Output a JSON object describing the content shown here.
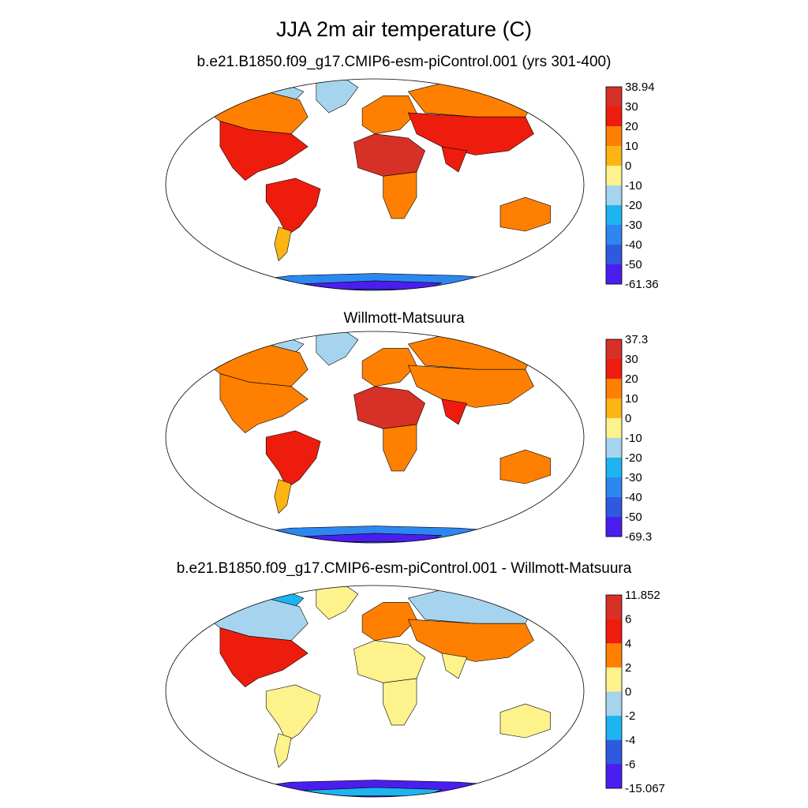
{
  "title": "JJA 2m air temperature (C)",
  "panels": [
    {
      "id": "model",
      "title": "b.e21.B1850.f09_g17.CMIP6-esm-piControl.001 (yrs 301-400)",
      "colorbar": {
        "labels": [
          "38.94",
          "30",
          "20",
          "10",
          "0",
          "-10",
          "-20",
          "-30",
          "-40",
          "-50",
          "-61.36"
        ],
        "colors": [
          "#d73027",
          "#ee1c0c",
          "#ff8000",
          "#fdb514",
          "#fef28c",
          "#a6d4ee",
          "#1eb4f0",
          "#2d87ef",
          "#2f5ae0",
          "#4b1ef0"
        ]
      },
      "regions": {
        "north_america": "#ee1c0c",
        "canada": "#ff8000",
        "arctic_islands": "#a6d4ee",
        "south_america": "#ee1c0c",
        "patagonia": "#fdb514",
        "africa_north": "#d73027",
        "africa_south": "#ff8000",
        "europe": "#ff8000",
        "asia": "#ee1c0c",
        "siberia": "#ff8000",
        "greenland": "#a6d4ee",
        "india": "#ee1c0c",
        "australia": "#ff8000",
        "antarctica": "#2d87ef",
        "antarctica_core": "#4b1ef0"
      }
    },
    {
      "id": "obs",
      "title": "Willmott-Matsuura",
      "colorbar": {
        "labels": [
          "37.3",
          "30",
          "20",
          "10",
          "0",
          "-10",
          "-20",
          "-30",
          "-40",
          "-50",
          "-69.3"
        ],
        "colors": [
          "#d73027",
          "#ee1c0c",
          "#ff8000",
          "#fdb514",
          "#fef28c",
          "#a6d4ee",
          "#1eb4f0",
          "#2d87ef",
          "#2f5ae0",
          "#4b1ef0"
        ]
      },
      "regions": {
        "north_america": "#ff8000",
        "canada": "#ff8000",
        "arctic_islands": "#a6d4ee",
        "south_america": "#ee1c0c",
        "patagonia": "#fdb514",
        "africa_north": "#d73027",
        "africa_south": "#ff8000",
        "europe": "#ff8000",
        "asia": "#ff8000",
        "siberia": "#ff8000",
        "greenland": "#a6d4ee",
        "india": "#ee1c0c",
        "australia": "#ff8000",
        "antarctica": "#2d87ef",
        "antarctica_core": "#4b1ef0"
      }
    },
    {
      "id": "diff",
      "title": "b.e21.B1850.f09_g17.CMIP6-esm-piControl.001 - Willmott-Matsuura",
      "colorbar": {
        "labels": [
          "11.852",
          "6",
          "4",
          "2",
          "0",
          "-2",
          "-4",
          "-6",
          "-15.067"
        ],
        "colors": [
          "#d73027",
          "#ee1c0c",
          "#ff8000",
          "#fef28c",
          "#a6d4ee",
          "#1eb4f0",
          "#2f5ae0",
          "#4b1ef0"
        ]
      },
      "regions": {
        "north_america": "#ee1c0c",
        "canada": "#a6d4ee",
        "arctic_islands": "#1eb4f0",
        "south_america": "#fef28c",
        "patagonia": "#fef28c",
        "africa_north": "#fef28c",
        "africa_south": "#fef28c",
        "europe": "#ff8000",
        "asia": "#ff8000",
        "siberia": "#a6d4ee",
        "greenland": "#fef28c",
        "india": "#fef28c",
        "australia": "#fef28c",
        "antarctica": "#4b1ef0",
        "antarctica_core": "#1eb4f0"
      }
    }
  ]
}
